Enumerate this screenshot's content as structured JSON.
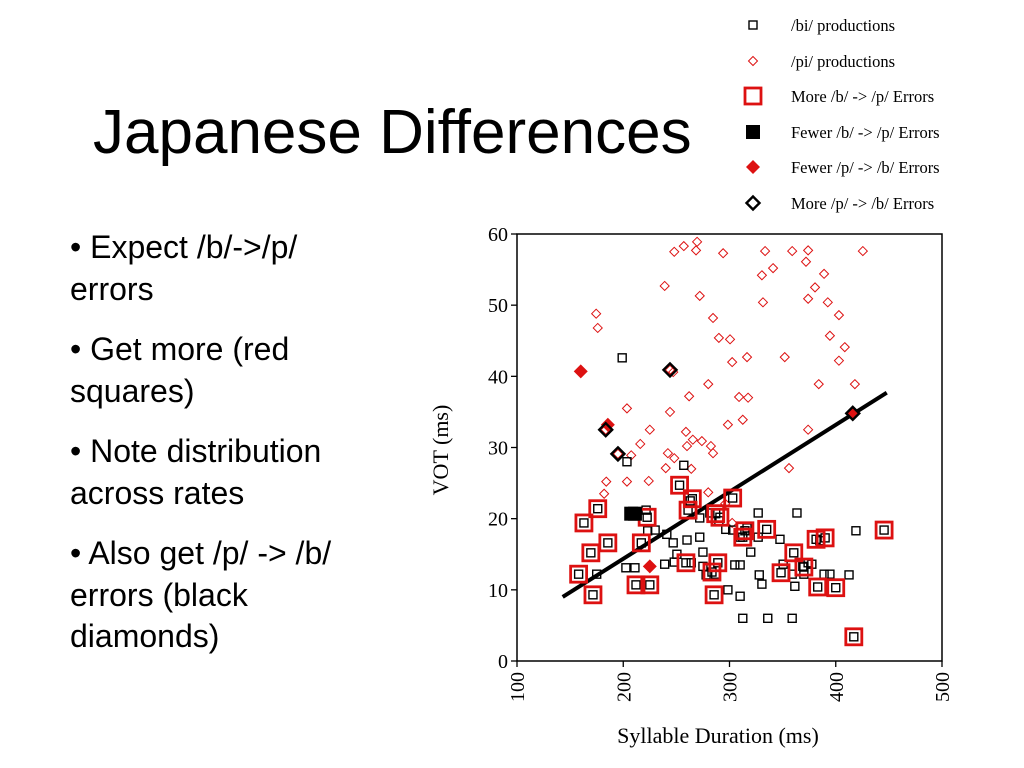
{
  "slide": {
    "title": "Japanese Differences",
    "bullets": [
      "• Expect /b/->/p/ errors",
      "• Get more (red squares)",
      "• Note distribution across rates",
      "• Also get /p/ -> /b/ errors (black diamonds)"
    ]
  },
  "colors": {
    "red": "#dd1111",
    "black": "#000000"
  },
  "chart_data": {
    "type": "scatter",
    "xlabel": "Syllable Duration (ms)",
    "ylabel": "VOT (ms)",
    "xlim": [
      100,
      500
    ],
    "ylim": [
      0,
      60
    ],
    "xticks": [
      100,
      200,
      300,
      400,
      500
    ],
    "yticks": [
      0,
      10,
      20,
      30,
      40,
      50,
      60
    ],
    "grid": false,
    "legend_position": "top-right",
    "series": [
      {
        "name": "/bi/ productions",
        "marker": "open-square-small",
        "color": "#000000",
        "points": [
          [
            199,
            42.6
          ],
          [
            203.5,
            28
          ],
          [
            257,
            27.5
          ],
          [
            363.5,
            20.8
          ],
          [
            303,
            22.9
          ],
          [
            202.5,
            13.1
          ],
          [
            211,
            13.1
          ],
          [
            175,
            12.2
          ],
          [
            239,
            13.6
          ],
          [
            250.5,
            15
          ],
          [
            248,
            13.9
          ],
          [
            264,
            13.8
          ],
          [
            275,
            15.3
          ],
          [
            275,
            13.3
          ],
          [
            278,
            12.1
          ],
          [
            287,
            12.2
          ],
          [
            272,
            20.1
          ],
          [
            281.5,
            20.8
          ],
          [
            290,
            19.7
          ],
          [
            296.5,
            18.5
          ],
          [
            303,
            18.4
          ],
          [
            310,
            17.4
          ],
          [
            316.5,
            18.7
          ],
          [
            320,
            15.3
          ],
          [
            327,
            17.4
          ],
          [
            327,
            20.8
          ],
          [
            347.5,
            17.1
          ],
          [
            305,
            13.5
          ],
          [
            310,
            13.5
          ],
          [
            328,
            12.1
          ],
          [
            330.5,
            10.8
          ],
          [
            310,
            9.1
          ],
          [
            312.5,
            6
          ],
          [
            336,
            6
          ],
          [
            359,
            6
          ],
          [
            350.5,
            13.6
          ],
          [
            359,
            12.2
          ],
          [
            361.5,
            10.5
          ],
          [
            369,
            13.3
          ],
          [
            377.5,
            13.6
          ],
          [
            370,
            12.2
          ],
          [
            389,
            12.2
          ],
          [
            394.5,
            12.2
          ],
          [
            412.5,
            12.1
          ],
          [
            419,
            18.3
          ],
          [
            385,
            16.9
          ],
          [
            374,
            13.8
          ],
          [
            223,
            18.3
          ],
          [
            230,
            18.4
          ],
          [
            241,
            17.8
          ],
          [
            247,
            16.6
          ],
          [
            260,
            17
          ],
          [
            263,
            22.5
          ],
          [
            272,
            17.4
          ],
          [
            221.5,
            21.2
          ],
          [
            298.5,
            10
          ],
          [
            158,
            12.2
          ],
          [
            171.5,
            9.3
          ],
          [
            176,
            21.4
          ],
          [
            185.5,
            16.6
          ],
          [
            169.5,
            15.2
          ],
          [
            163,
            19.4
          ],
          [
            222.5,
            20.2
          ],
          [
            217,
            16.6
          ],
          [
            212,
            10.7
          ],
          [
            225,
            10.7
          ],
          [
            253,
            24.7
          ],
          [
            265,
            22.8
          ],
          [
            261,
            21.2
          ],
          [
            259,
            13.8
          ],
          [
            287,
            20.7
          ],
          [
            291,
            20.2
          ],
          [
            314.5,
            18.3
          ],
          [
            335,
            18.5
          ],
          [
            312.5,
            17.4
          ],
          [
            289,
            13.8
          ],
          [
            283.5,
            12.5
          ],
          [
            285.5,
            9.3
          ],
          [
            348.5,
            12.4
          ],
          [
            360.5,
            15.2
          ],
          [
            370,
            13.2
          ],
          [
            381.5,
            17.1
          ],
          [
            390,
            17.3
          ],
          [
            383,
            10.4
          ],
          [
            400,
            10.3
          ],
          [
            417,
            3.4
          ],
          [
            445.5,
            18.4
          ],
          [
            207.5,
            20.7
          ],
          [
            211,
            20.7
          ]
        ]
      },
      {
        "name": "/pi/ productions",
        "marker": "open-diamond-small",
        "color": "#dd1111",
        "points": [
          [
            174.5,
            48.8
          ],
          [
            176,
            46.8
          ],
          [
            239,
            52.7
          ],
          [
            248,
            57.5
          ],
          [
            257,
            58.3
          ],
          [
            269.5,
            58.9
          ],
          [
            268.5,
            57.7
          ],
          [
            294,
            57.3
          ],
          [
            333.5,
            57.6
          ],
          [
            359,
            57.6
          ],
          [
            374,
            57.7
          ],
          [
            425.5,
            57.6
          ],
          [
            372,
            56.1
          ],
          [
            341,
            55.2
          ],
          [
            330.5,
            54.2
          ],
          [
            389,
            54.4
          ],
          [
            380.5,
            52.5
          ],
          [
            392.5,
            50.4
          ],
          [
            374,
            50.9
          ],
          [
            331.5,
            50.4
          ],
          [
            272,
            51.3
          ],
          [
            284.5,
            48.2
          ],
          [
            403,
            48.6
          ],
          [
            394.5,
            45.7
          ],
          [
            408.5,
            44.1
          ],
          [
            290,
            45.4
          ],
          [
            300.5,
            45.2
          ],
          [
            316.5,
            42.7
          ],
          [
            302.5,
            42
          ],
          [
            352,
            42.7
          ],
          [
            403,
            42.2
          ],
          [
            247,
            40.6
          ],
          [
            262,
            37.2
          ],
          [
            280,
            38.9
          ],
          [
            384,
            38.9
          ],
          [
            418,
            38.9
          ],
          [
            309,
            37.1
          ],
          [
            317.5,
            37
          ],
          [
            312.5,
            33.9
          ],
          [
            244,
            35
          ],
          [
            203.5,
            35.5
          ],
          [
            374,
            32.5
          ],
          [
            259,
            32.2
          ],
          [
            265.5,
            31.1
          ],
          [
            274,
            30.9
          ],
          [
            260,
            30.2
          ],
          [
            282.5,
            30.2
          ],
          [
            284.5,
            29.2
          ],
          [
            225,
            32.5
          ],
          [
            216,
            30.5
          ],
          [
            207.5,
            28.9
          ],
          [
            242,
            29.2
          ],
          [
            248,
            28.5
          ],
          [
            264,
            27
          ],
          [
            240,
            27.1
          ],
          [
            298.5,
            33.2
          ],
          [
            356,
            27.1
          ],
          [
            184,
            25.2
          ],
          [
            203.5,
            25.2
          ],
          [
            224,
            25.3
          ],
          [
            182,
            23.5
          ],
          [
            280,
            23.7
          ],
          [
            302.5,
            19.4
          ],
          [
            296,
            22.1
          ],
          [
            160,
            40.7
          ],
          [
            185.5,
            33.2
          ],
          [
            183.5,
            32.5
          ],
          [
            195,
            29.1
          ],
          [
            244,
            40.9
          ],
          [
            416,
            34.8
          ],
          [
            225,
            13.3
          ]
        ]
      },
      {
        "name": "More /b/ -> /p/ Errors",
        "marker": "open-square-large",
        "color": "#dd1111",
        "points": [
          [
            163,
            19.4
          ],
          [
            176,
            21.4
          ],
          [
            185.5,
            16.6
          ],
          [
            169.5,
            15.2
          ],
          [
            158,
            12.2
          ],
          [
            171.5,
            9.3
          ],
          [
            222.5,
            20.2
          ],
          [
            217,
            16.6
          ],
          [
            212,
            10.7
          ],
          [
            225,
            10.7
          ],
          [
            253,
            24.7
          ],
          [
            265,
            22.8
          ],
          [
            261,
            21.2
          ],
          [
            259,
            13.8
          ],
          [
            287,
            20.7
          ],
          [
            291,
            20.2
          ],
          [
            303,
            22.9
          ],
          [
            314.5,
            18.3
          ],
          [
            335,
            18.5
          ],
          [
            312.5,
            17.4
          ],
          [
            289,
            13.8
          ],
          [
            283.5,
            12.5
          ],
          [
            285.5,
            9.3
          ],
          [
            348.5,
            12.4
          ],
          [
            360.5,
            15.2
          ],
          [
            370,
            13.2
          ],
          [
            381.5,
            17.1
          ],
          [
            390,
            17.3
          ],
          [
            383,
            10.4
          ],
          [
            400,
            10.3
          ],
          [
            417,
            3.4
          ],
          [
            445.5,
            18.4
          ]
        ]
      },
      {
        "name": "Fewer /b/ -> /p/ Errors",
        "marker": "filled-square",
        "color": "#000000",
        "points": [
          [
            207.5,
            20.7
          ],
          [
            211,
            20.7
          ]
        ]
      },
      {
        "name": "Fewer /p/ -> /b/ Errors",
        "marker": "filled-diamond",
        "color": "#dd1111",
        "points": [
          [
            160,
            40.7
          ],
          [
            185.5,
            33.2
          ],
          [
            225,
            13.3
          ],
          [
            416,
            34.8
          ]
        ]
      },
      {
        "name": "More /p/ -> /b/ Errors",
        "marker": "open-diamond-large",
        "color": "#000000",
        "points": [
          [
            183.5,
            32.5
          ],
          [
            195,
            29.1
          ],
          [
            244,
            40.9
          ],
          [
            416,
            34.8
          ]
        ]
      }
    ],
    "trend_line": {
      "type": "linear",
      "x": [
        143,
        448
      ],
      "y": [
        9,
        37.7
      ],
      "color": "#000000"
    }
  }
}
